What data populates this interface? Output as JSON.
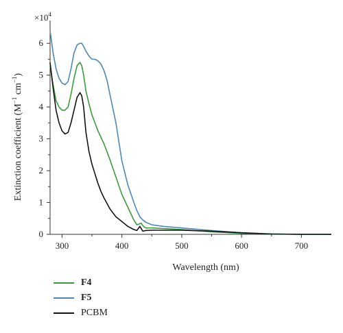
{
  "chart_data": {
    "type": "line",
    "multiplier_label": "×10",
    "multiplier_exponent": "4",
    "xlabel": "Wavelength (nm)",
    "ylabel_main": "Extinction coefficient (M",
    "ylabel_sup1": "−1",
    "ylabel_mid": " cm",
    "ylabel_sup2": "−1",
    "ylabel_end": ")",
    "xlim": [
      280,
      750
    ],
    "ylim": [
      0,
      6.5
    ],
    "x_ticks": [
      300,
      400,
      500,
      600,
      700
    ],
    "y_ticks": [
      0,
      1,
      2,
      3,
      4,
      5,
      6
    ],
    "grid": false,
    "legend_position": "bottom-left",
    "series": [
      {
        "name": "F4",
        "bold": true,
        "color": "#3a9a3a",
        "x": [
          280,
          285,
          290,
          295,
          300,
          305,
          310,
          315,
          320,
          325,
          330,
          333,
          336,
          340,
          345,
          350,
          355,
          360,
          370,
          380,
          390,
          400,
          410,
          420,
          425,
          428,
          432,
          436,
          440,
          450,
          500,
          550,
          600,
          650,
          700,
          750
        ],
        "y": [
          5.3,
          4.7,
          4.2,
          4.0,
          3.9,
          3.9,
          4.0,
          4.4,
          4.9,
          5.3,
          5.4,
          5.3,
          5.0,
          4.5,
          4.1,
          3.75,
          3.5,
          3.25,
          2.85,
          2.35,
          1.8,
          1.25,
          0.85,
          0.45,
          0.3,
          0.32,
          0.35,
          0.25,
          0.2,
          0.2,
          0.15,
          0.08,
          0.03,
          0.01,
          0.0,
          0.0
        ]
      },
      {
        "name": "F5",
        "bold": true,
        "color": "#4f86b8",
        "x": [
          280,
          285,
          290,
          295,
          300,
          305,
          310,
          315,
          320,
          325,
          330,
          333,
          336,
          340,
          345,
          350,
          355,
          360,
          365,
          370,
          375,
          380,
          390,
          400,
          410,
          420,
          425,
          430,
          435,
          440,
          450,
          470,
          500,
          550,
          600,
          650,
          700,
          750
        ],
        "y": [
          6.4,
          5.7,
          5.2,
          4.9,
          4.75,
          4.7,
          4.8,
          5.2,
          5.7,
          5.95,
          6.0,
          6.0,
          5.9,
          5.75,
          5.6,
          5.5,
          5.5,
          5.45,
          5.35,
          5.15,
          4.85,
          4.4,
          3.5,
          2.3,
          1.55,
          1.0,
          0.75,
          0.55,
          0.45,
          0.38,
          0.3,
          0.25,
          0.2,
          0.12,
          0.05,
          0.01,
          0.0,
          0.0
        ]
      },
      {
        "name": "PCBM",
        "bold": false,
        "color": "#111111",
        "x": [
          280,
          285,
          290,
          295,
          300,
          305,
          310,
          315,
          320,
          325,
          330,
          333,
          336,
          340,
          345,
          350,
          355,
          360,
          365,
          370,
          380,
          390,
          400,
          410,
          420,
          425,
          430,
          435,
          440,
          450,
          470,
          500,
          550,
          600,
          650,
          700,
          750
        ],
        "y": [
          5.4,
          4.6,
          3.9,
          3.5,
          3.25,
          3.15,
          3.2,
          3.5,
          3.9,
          4.3,
          4.45,
          4.35,
          4.0,
          3.2,
          2.6,
          2.2,
          1.9,
          1.6,
          1.35,
          1.15,
          0.8,
          0.55,
          0.4,
          0.25,
          0.15,
          0.12,
          0.25,
          0.1,
          0.12,
          0.13,
          0.13,
          0.13,
          0.1,
          0.05,
          0.01,
          0.0,
          0.0
        ]
      }
    ]
  }
}
